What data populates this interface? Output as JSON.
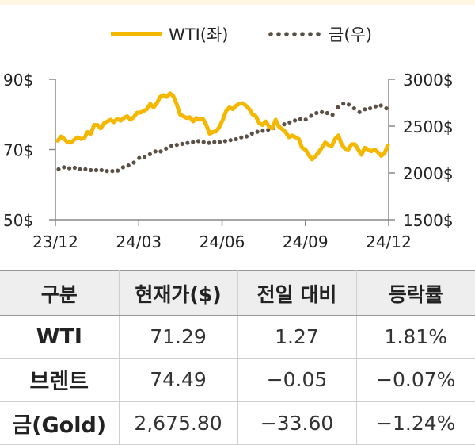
{
  "chart_data": {
    "type": "line",
    "x_ticks": [
      "23/12",
      "24/03",
      "24/06",
      "24/09",
      "24/12"
    ],
    "y_left": {
      "ticks": [
        "90$",
        "70$",
        "50$"
      ],
      "range": [
        50,
        90
      ]
    },
    "y_right": {
      "ticks": [
        "3000$",
        "2500$",
        "2000$",
        "1500$"
      ],
      "range": [
        1500,
        3000
      ]
    },
    "legend_position": "top",
    "series": [
      {
        "name": "WTI(좌)",
        "axis": "left",
        "color": "#F5B800",
        "style": "solid",
        "values": [
          72.5,
          73.7,
          73.0,
          72.0,
          72.0,
          72.8,
          73.5,
          73.0,
          73.2,
          75.0,
          74.5,
          77.0,
          77.0,
          76.0,
          77.5,
          78.0,
          78.5,
          77.8,
          78.8,
          78.2,
          79.0,
          79.5,
          78.5,
          79.2,
          80.5,
          80.5,
          81.0,
          81.5,
          83.0,
          82.0,
          83.2,
          85.0,
          85.5,
          85.0,
          86.0,
          85.2,
          83.0,
          80.0,
          79.5,
          79.0,
          79.2,
          78.0,
          79.0,
          78.5,
          78.7,
          77.0,
          74.5,
          75.0,
          75.2,
          76.5,
          78.5,
          81.0,
          82.0,
          81.5,
          82.5,
          83.0,
          83.2,
          82.5,
          81.5,
          80.0,
          79.5,
          77.5,
          77.0,
          78.0,
          76.5,
          76.0,
          78.5,
          76.5,
          75.8,
          75.0,
          73.5,
          74.0,
          73.5,
          73.0,
          70.5,
          70.0,
          68.5,
          67.2,
          68.0,
          69.2,
          70.5,
          72.0,
          71.3,
          71.0,
          73.0,
          74.0,
          71.5,
          70.2,
          70.0,
          71.5,
          71.5,
          70.0,
          68.5,
          70.5,
          70.0,
          69.5,
          70.0,
          69.2,
          68.2,
          69.0,
          71.2
        ]
      },
      {
        "name": "금(우)",
        "axis": "right",
        "color": "#5A5045",
        "style": "dotted",
        "values": [
          2040,
          2060,
          2050,
          2055,
          2040,
          2040,
          2030,
          2030,
          2030,
          2020,
          2020,
          2025,
          2060,
          2080,
          2110,
          2160,
          2170,
          2200,
          2230,
          2230,
          2260,
          2290,
          2300,
          2310,
          2320,
          2330,
          2340,
          2330,
          2320,
          2330,
          2330,
          2340,
          2350,
          2360,
          2380,
          2390,
          2420,
          2440,
          2450,
          2460,
          2480,
          2500,
          2520,
          2540,
          2560,
          2575,
          2570,
          2610,
          2640,
          2650,
          2640,
          2620,
          2700,
          2740,
          2730,
          2690,
          2650,
          2680,
          2690,
          2710,
          2720,
          2690
        ]
      }
    ]
  },
  "table": {
    "headers": [
      "구분",
      "현재가($)",
      "전일 대비",
      "등락률"
    ],
    "rows": [
      [
        "WTI",
        "71.29",
        "1.27",
        "1.81%"
      ],
      [
        "브렌트",
        "74.49",
        "−0.05",
        "−0.07%"
      ],
      [
        "금(Gold)",
        "2,675.80",
        "−33.60",
        "−1.24%"
      ]
    ]
  }
}
